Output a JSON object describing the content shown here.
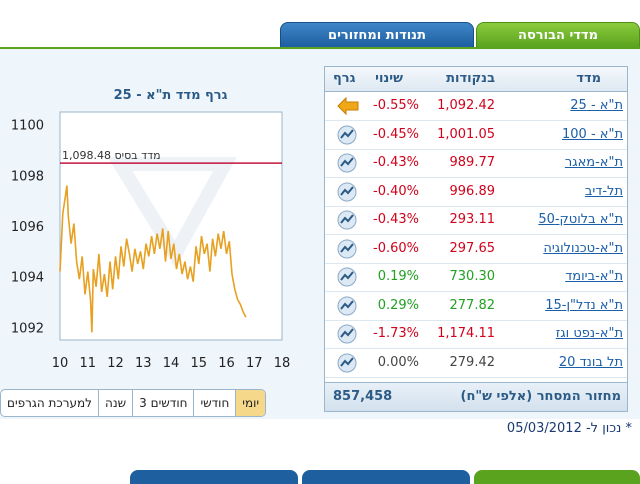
{
  "tabs": {
    "indices": "מדדי הבורסה",
    "movements": "תנודות ומחזורים"
  },
  "chart": {
    "title": "גרף מדד ת\"א - 25",
    "base_label": "מדד בסיס 1,098.48",
    "y_ticks": [
      "1100",
      "1098",
      "1096",
      "1094",
      "1092"
    ],
    "x_ticks": [
      "10",
      "11",
      "12",
      "13",
      "14",
      "15",
      "16",
      "17",
      "18"
    ]
  },
  "chart_data": {
    "type": "line",
    "title": "גרף מדד ת\"א - 25",
    "xlabel": "",
    "ylabel": "",
    "xlim": [
      10,
      18
    ],
    "ylim": [
      1091.5,
      1100.5
    ],
    "y_ticks": [
      1092,
      1094,
      1096,
      1098,
      1100
    ],
    "x_ticks": [
      10,
      11,
      12,
      13,
      14,
      15,
      16,
      17,
      18
    ],
    "reference_line": {
      "value": 1098.48,
      "label": "מדד בסיס 1,098.48"
    },
    "series": [
      {
        "values_x": [
          10.0,
          10.1,
          10.2,
          10.25,
          10.3,
          10.4,
          10.5,
          10.6,
          10.7,
          10.8,
          10.9,
          11.0,
          11.1,
          11.15,
          11.2,
          11.3,
          11.4,
          11.5,
          11.6,
          11.7,
          11.8,
          11.9,
          12.0,
          12.1,
          12.2,
          12.3,
          12.4,
          12.5,
          12.6,
          12.7,
          12.8,
          12.9,
          13.0,
          13.1,
          13.2,
          13.3,
          13.4,
          13.5,
          13.6,
          13.7,
          13.8,
          13.9,
          14.0,
          14.1,
          14.2,
          14.3,
          14.4,
          14.5,
          14.6,
          14.7,
          14.8,
          14.9,
          15.0,
          15.1,
          15.2,
          15.3,
          15.4,
          15.5,
          15.6,
          15.7,
          15.8,
          15.9,
          16.0,
          16.1,
          16.2,
          16.3,
          16.4,
          16.5,
          16.6,
          16.7
        ],
        "values_y": [
          1094.2,
          1096.5,
          1097.2,
          1097.6,
          1096.4,
          1095.3,
          1096.1,
          1094.6,
          1093.9,
          1094.8,
          1093.3,
          1094.2,
          1093.1,
          1091.8,
          1094.3,
          1093.6,
          1094.9,
          1093.4,
          1094.1,
          1093.2,
          1094.6,
          1093.5,
          1094.8,
          1093.9,
          1095.2,
          1094.4,
          1095.5,
          1094.9,
          1094.2,
          1095.1,
          1094.5,
          1095.0,
          1094.3,
          1095.3,
          1094.8,
          1095.6,
          1094.9,
          1095.7,
          1095.1,
          1095.9,
          1094.6,
          1095.8,
          1094.7,
          1095.3,
          1094.3,
          1094.9,
          1094.1,
          1094.6,
          1093.9,
          1094.4,
          1093.8,
          1095.2,
          1094.5,
          1095.6,
          1094.9,
          1095.3,
          1094.2,
          1095.5,
          1094.8,
          1095.7,
          1095.1,
          1095.8,
          1094.9,
          1095.4,
          1094.1,
          1093.5,
          1093.1,
          1092.9,
          1092.6,
          1092.4
        ]
      }
    ]
  },
  "ranges": [
    "יומי",
    "חודשי",
    "3 חודשים",
    "שנה",
    "למערכת הגרפים"
  ],
  "table": {
    "headers": {
      "index": "מדד",
      "points": "בנקודות",
      "change": "שינוי",
      "graph": "גרף"
    },
    "rows": [
      {
        "name": "ת\"א - 25",
        "points": "1,092.42",
        "change": "-0.55%",
        "color": "red",
        "icon": "arrow-left-icon"
      },
      {
        "name": "ת\"א - 100",
        "points": "1,001.05",
        "change": "-0.45%",
        "color": "red",
        "icon": "chart-icon"
      },
      {
        "name": "ת\"א-מאגר",
        "points": "989.77",
        "change": "-0.43%",
        "color": "red",
        "icon": "chart-icon"
      },
      {
        "name": "תל-דיב",
        "points": "996.89",
        "change": "-0.40%",
        "color": "red",
        "icon": "chart-icon"
      },
      {
        "name": "ת\"א בלוטק-50",
        "points": "293.11",
        "change": "-0.43%",
        "color": "red",
        "icon": "chart-icon"
      },
      {
        "name": "ת\"א-טכנולוגיה",
        "points": "297.65",
        "change": "-0.60%",
        "color": "red",
        "icon": "chart-icon"
      },
      {
        "name": "ת\"א-ביומד",
        "points": "730.30",
        "change": "0.19%",
        "color": "green",
        "icon": "chart-icon"
      },
      {
        "name": "ת\"א נדל\"ן-15",
        "points": "277.82",
        "change": "0.29%",
        "color": "green",
        "icon": "chart-icon"
      },
      {
        "name": "ת\"א-נפט וגז",
        "points": "1,174.11",
        "change": "-1.73%",
        "color": "red",
        "icon": "chart-icon"
      },
      {
        "name": "תל בונד 20",
        "points": "279.42",
        "change": "0.00%",
        "color": "gray",
        "icon": "chart-icon"
      }
    ],
    "turnover_label": "מחזור המסחר (אלפי ש\"ח)",
    "turnover_value": "857,458"
  },
  "note": "* נכון ל- 05/03/2012",
  "colors": {
    "green_tab": "#5aa31e",
    "blue_tab": "#1d5f9f",
    "negative": "#d0021b",
    "positive": "#22a022",
    "chart_line": "#e8a020",
    "base_line": "#c0143c"
  }
}
